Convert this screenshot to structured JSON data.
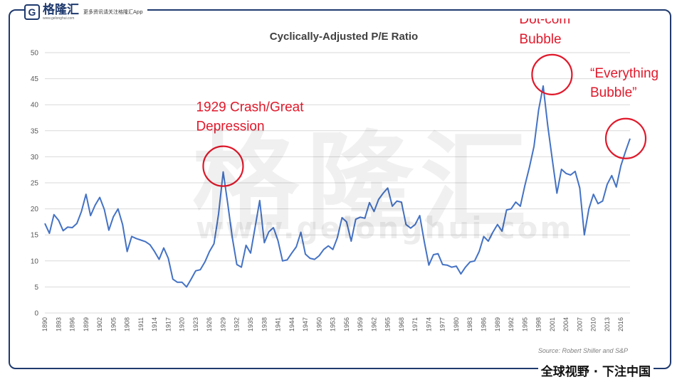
{
  "branding": {
    "logo_letter": "G",
    "logo_name": "格隆汇",
    "logo_url": "www.gelonghui.com",
    "tagline": "更多资讯请关注格隆汇App",
    "slogan": "全球视野 · 下注中国",
    "watermark_name": "格隆汇",
    "watermark_url": "www.gelonghui.com"
  },
  "chart_data": {
    "type": "line",
    "title": "Cyclically-Adjusted P/E Ratio",
    "xlabel": "",
    "ylabel": "",
    "source": "Source: Robert Shiller and S&P",
    "ylim": [
      0,
      50
    ],
    "yticks": [
      0,
      5,
      10,
      15,
      20,
      25,
      30,
      35,
      40,
      45,
      50
    ],
    "xlim": [
      1890,
      2018
    ],
    "xticks": [
      1890,
      1893,
      1896,
      1899,
      1902,
      1905,
      1908,
      1911,
      1914,
      1917,
      1920,
      1923,
      1926,
      1929,
      1932,
      1935,
      1938,
      1941,
      1944,
      1947,
      1950,
      1953,
      1956,
      1959,
      1962,
      1965,
      1968,
      1971,
      1974,
      1977,
      1980,
      1983,
      1986,
      1989,
      1992,
      1995,
      1998,
      2001,
      2004,
      2007,
      2010,
      2013,
      2016
    ],
    "grid": true,
    "legend": "none",
    "color": "#4472c4",
    "series": [
      {
        "x": [
          1890,
          1891,
          1892,
          1893,
          1894,
          1895,
          1896,
          1897,
          1898,
          1899,
          1900,
          1901,
          1902,
          1903,
          1904,
          1905,
          1906,
          1907,
          1908,
          1909,
          1910,
          1911,
          1912,
          1913,
          1914,
          1915,
          1916,
          1917,
          1918,
          1919,
          1920,
          1921,
          1922,
          1923,
          1924,
          1925,
          1926,
          1927,
          1928,
          1929,
          1930,
          1931,
          1932,
          1933,
          1934,
          1935,
          1936,
          1937,
          1938,
          1939,
          1940,
          1941,
          1942,
          1943,
          1944,
          1945,
          1946,
          1947,
          1948,
          1949,
          1950,
          1951,
          1952,
          1953,
          1954,
          1955,
          1956,
          1957,
          1958,
          1959,
          1960,
          1961,
          1962,
          1963,
          1964,
          1965,
          1966,
          1967,
          1968,
          1969,
          1970,
          1971,
          1972,
          1973,
          1974,
          1975,
          1976,
          1977,
          1978,
          1979,
          1980,
          1981,
          1982,
          1983,
          1984,
          1985,
          1986,
          1987,
          1988,
          1989,
          1990,
          1991,
          1992,
          1993,
          1994,
          1995,
          1996,
          1997,
          1998,
          1999,
          2000,
          2001,
          2002,
          2003,
          2004,
          2005,
          2006,
          2007,
          2008,
          2009,
          2010,
          2011,
          2012,
          2013,
          2014,
          2015,
          2016,
          2017,
          2018
        ],
        "y": [
          17.2,
          15.3,
          18.9,
          17.8,
          15.8,
          16.5,
          16.4,
          17.2,
          19.5,
          22.8,
          18.7,
          20.7,
          22.2,
          19.9,
          15.9,
          18.5,
          20.0,
          17.0,
          11.8,
          14.7,
          14.3,
          14.0,
          13.7,
          13.1,
          11.8,
          10.3,
          12.5,
          10.5,
          6.5,
          5.9,
          5.9,
          5.0,
          6.5,
          8.1,
          8.3,
          9.8,
          11.8,
          13.3,
          19.0,
          27.1,
          21.0,
          14.5,
          9.3,
          8.8,
          13.0,
          11.5,
          16.5,
          21.6,
          13.5,
          15.6,
          16.4,
          13.9,
          10.0,
          10.2,
          11.5,
          12.7,
          15.5,
          11.3,
          10.5,
          10.3,
          11.0,
          12.2,
          12.9,
          12.2,
          14.5,
          18.3,
          17.5,
          13.8,
          18.0,
          18.4,
          18.2,
          21.2,
          19.5,
          21.8,
          23.0,
          24.0,
          20.5,
          21.5,
          21.3,
          17.0,
          16.3,
          17.0,
          18.7,
          13.7,
          9.2,
          11.2,
          11.4,
          9.3,
          9.2,
          8.8,
          9.0,
          7.5,
          8.8,
          9.8,
          10.0,
          11.8,
          14.7,
          13.8,
          15.5,
          17.0,
          15.7,
          19.8,
          20.0,
          21.3,
          20.5,
          24.5,
          28.0,
          32.0,
          39.0,
          43.6,
          36.0,
          29.5,
          23.0,
          27.6,
          26.8,
          26.5,
          27.2,
          24.0,
          15.0,
          20.0,
          22.8,
          21.0,
          21.5,
          24.7,
          26.4,
          24.2,
          28.3,
          31.0,
          33.5
        ]
      }
    ],
    "annotations": [
      {
        "text_lines": [
          "1929 Crash/Great",
          "Depression"
        ],
        "x": 1929,
        "y": 27.1
      },
      {
        "text_lines": [
          "Dot-com",
          "Bubble"
        ],
        "x": 2000,
        "y": 43.6
      },
      {
        "text_lines": [
          "“Everything",
          "Bubble”"
        ],
        "x": 2018,
        "y": 33.5
      }
    ]
  }
}
